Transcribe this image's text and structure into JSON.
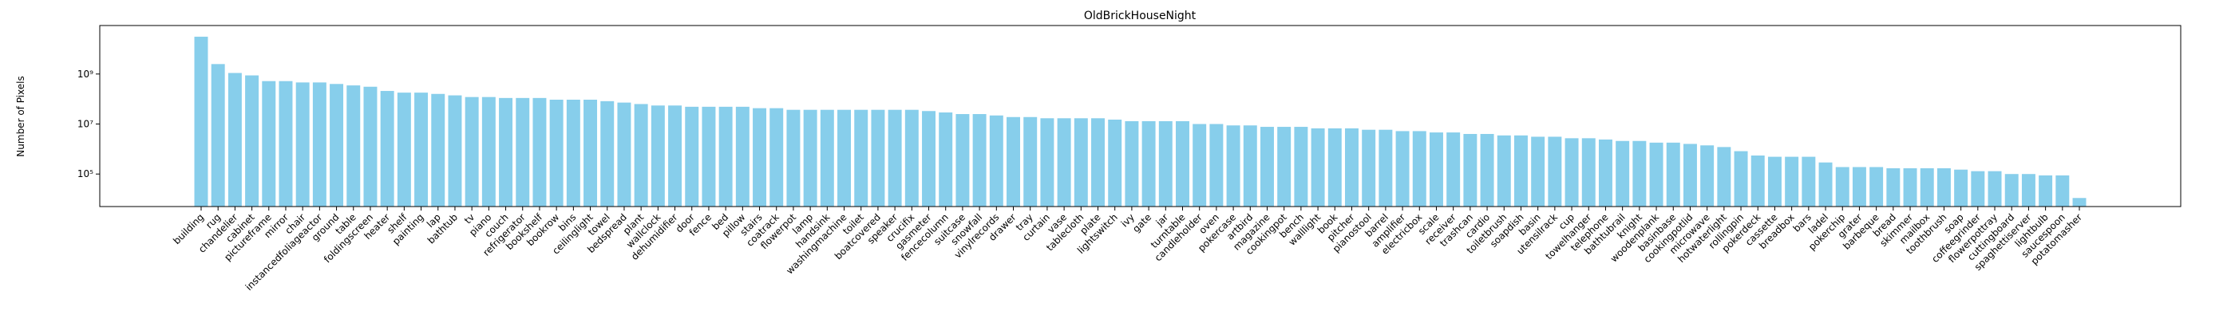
{
  "chart_data": {
    "type": "bar",
    "title": "OldBrickHouseNight",
    "y_label": "Number of Pixels",
    "categories": [
      "building",
      "rug",
      "chandelier",
      "cabinet",
      "pictureframe",
      "mirror",
      "chair",
      "instancedfoliageactor",
      "ground",
      "table",
      "foldingscreen",
      "heater",
      "shelf",
      "painting",
      "lap",
      "bathtub",
      "tv",
      "piano",
      "couch",
      "refrigerator",
      "bookshelf",
      "bookrow",
      "bins",
      "ceilinglight",
      "towel",
      "bedspread",
      "plant",
      "wallclock",
      "dehumidifier",
      "door",
      "fence",
      "bed",
      "pillow",
      "stairs",
      "coatrack",
      "flowerpot",
      "lamp",
      "handsink",
      "washingmachine",
      "toilet",
      "boatcovered",
      "speaker",
      "crucifix",
      "gasmeter",
      "fencecolumn",
      "suitcase",
      "snowfall",
      "vinylrecords",
      "drawer",
      "tray",
      "curtain",
      "vase",
      "tablecloth",
      "plate",
      "lightswitch",
      "ivy",
      "gate",
      "jar",
      "turntable",
      "candleholder",
      "oven",
      "pokercase",
      "artbird",
      "magazine",
      "cookingpot",
      "bench",
      "walllight",
      "book",
      "pitcher",
      "pianostool",
      "barrel",
      "amplifier",
      "electricbox",
      "scale",
      "receiver",
      "trashcan",
      "cardio",
      "toiletbrush",
      "soapdish",
      "basin",
      "utensilrack",
      "cup",
      "towelhanger",
      "telephone",
      "bathtubrail",
      "knight",
      "woodenplank",
      "basinbase",
      "cookingpotlid",
      "microwave",
      "hotwaterlight",
      "rollingpin",
      "pokerdeck",
      "cassette",
      "breadbox",
      "bars",
      "ladel",
      "pokerchip",
      "grater",
      "barbeque",
      "bread",
      "skimmer",
      "mailbox",
      "toothbrush",
      "soap",
      "coffeegrinder",
      "flowerpottray",
      "cuttingboard",
      "spaghettiserver",
      "lightbulb",
      "saucespoon",
      "potatomasher"
    ],
    "values": [
      31000000000,
      2500000000,
      1100000000,
      880000000,
      520000000,
      520000000,
      460000000,
      460000000,
      400000000,
      350000000,
      310000000,
      210000000,
      180000000,
      180000000,
      160000000,
      140000000,
      120000000,
      120000000,
      110000000,
      110000000,
      110000000,
      94000000,
      94000000,
      94000000,
      82000000,
      72000000,
      63000000,
      55000000,
      55000000,
      49000000,
      49000000,
      49000000,
      49000000,
      43000000,
      43000000,
      37000000,
      37000000,
      37000000,
      37000000,
      37000000,
      37000000,
      37000000,
      37000000,
      33000000,
      29000000,
      25000000,
      25000000,
      22000000,
      19000000,
      19000000,
      17000000,
      17000000,
      17000000,
      17000000,
      15000000,
      13000000,
      13000000,
      13000000,
      13000000,
      10000000,
      10000000,
      8800000,
      8800000,
      7700000,
      7700000,
      7700000,
      6700000,
      6700000,
      6700000,
      5900000,
      5900000,
      5200000,
      5200000,
      4600000,
      4600000,
      4000000,
      4000000,
      3500000,
      3500000,
      3100000,
      3100000,
      2700000,
      2700000,
      2400000,
      2100000,
      2100000,
      1800000,
      1800000,
      1600000,
      1400000,
      1200000,
      820000,
      550000,
      490000,
      490000,
      490000,
      290000,
      190000,
      190000,
      190000,
      170000,
      170000,
      170000,
      170000,
      150000,
      130000,
      130000,
      100000,
      100000,
      88000,
      88000,
      11000
    ],
    "color": "#87ceeb",
    "log_scale": true,
    "ylim": [
      5000,
      87000000000
    ],
    "yticks": [
      {
        "value": 100000,
        "label": "10⁵"
      },
      {
        "value": 10000000,
        "label": "10⁷"
      },
      {
        "value": 1000000000,
        "label": "10⁹"
      }
    ]
  }
}
